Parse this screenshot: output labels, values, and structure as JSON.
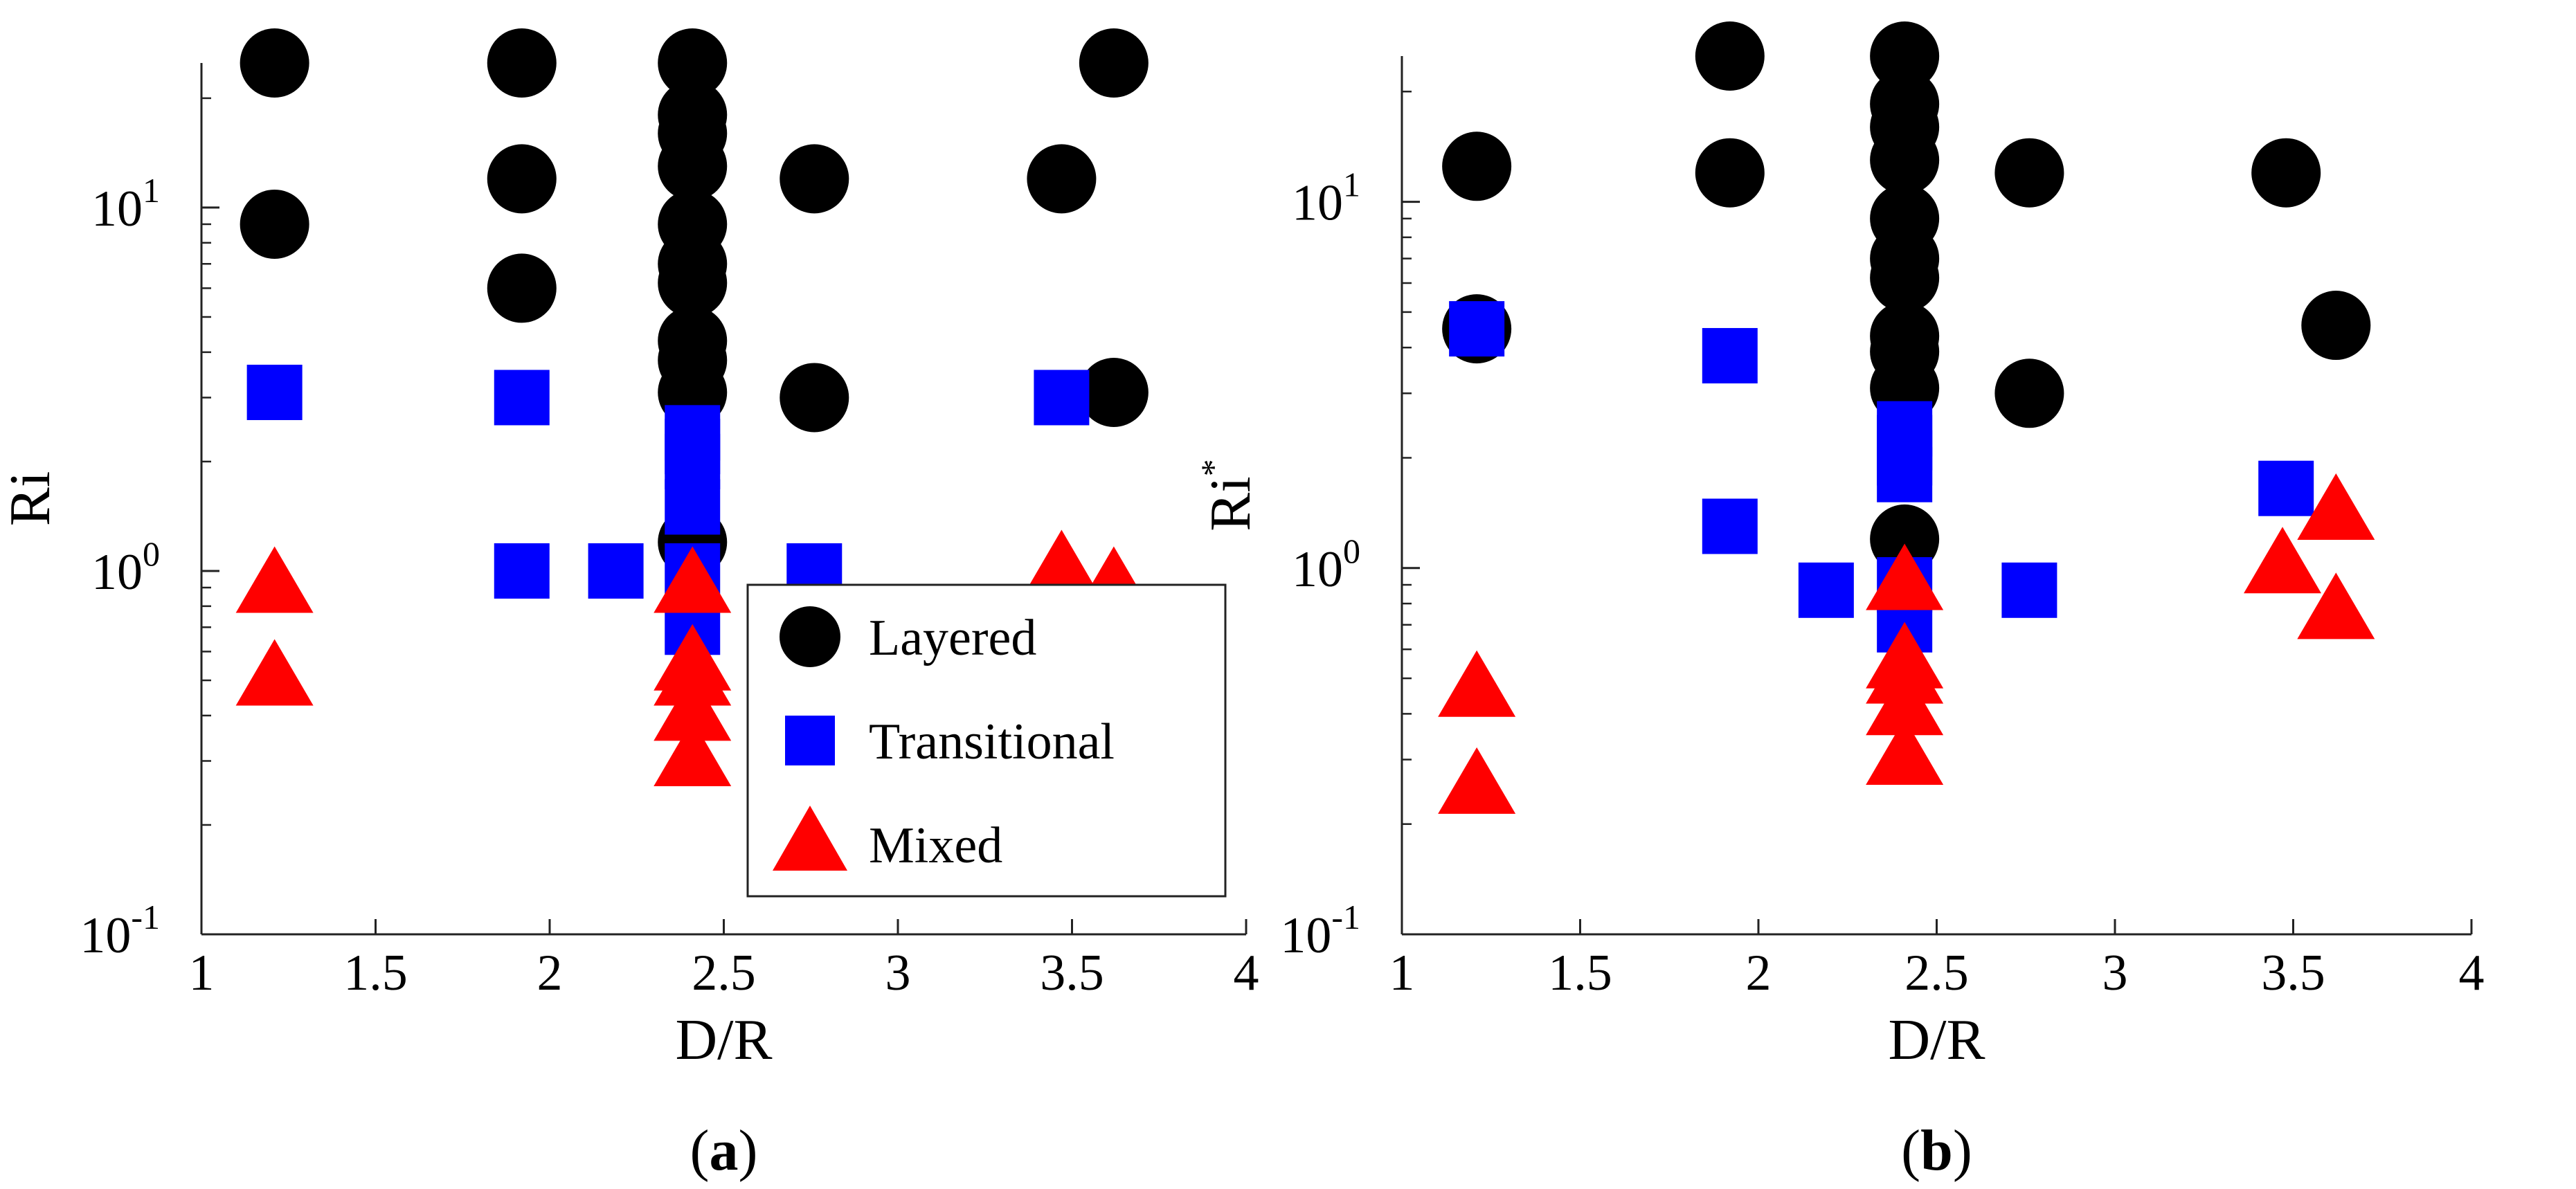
{
  "chart_data": [
    {
      "type": "scatter",
      "panel": "(a)",
      "panel_caption_letter": "a",
      "xlabel": "D/R",
      "ylabel": "Ri",
      "ylabel_sup": "",
      "xlim": [
        1,
        4
      ],
      "ylim": [
        0.1,
        25
      ],
      "yscale": "log",
      "x_ticks": [
        "1",
        "1.5",
        "2",
        "2.5",
        "3",
        "3.5",
        "4"
      ],
      "y_ticks": [
        {
          "base": "10",
          "exp": "-1",
          "value": 0.1
        },
        {
          "base": "10",
          "exp": "0",
          "value": 1
        },
        {
          "base": "10",
          "exp": "1",
          "value": 10
        }
      ],
      "grid": false,
      "legend": {
        "position": "bottom-right",
        "entries": [
          "Layered",
          "Transitional",
          "Mixed"
        ]
      },
      "series": [
        {
          "name": "Layered",
          "marker": "circle",
          "color": "#000000",
          "points": [
            {
              "x": 1.21,
              "y": 25
            },
            {
              "x": 1.21,
              "y": 9
            },
            {
              "x": 1.92,
              "y": 25
            },
            {
              "x": 1.92,
              "y": 12
            },
            {
              "x": 1.92,
              "y": 6
            },
            {
              "x": 2.41,
              "y": 25
            },
            {
              "x": 2.41,
              "y": 18
            },
            {
              "x": 2.41,
              "y": 16
            },
            {
              "x": 2.41,
              "y": 13
            },
            {
              "x": 2.41,
              "y": 9
            },
            {
              "x": 2.41,
              "y": 7
            },
            {
              "x": 2.41,
              "y": 6.2
            },
            {
              "x": 2.41,
              "y": 4.3
            },
            {
              "x": 2.41,
              "y": 3.8
            },
            {
              "x": 2.41,
              "y": 3.1
            },
            {
              "x": 2.41,
              "y": 1.2
            },
            {
              "x": 2.76,
              "y": 12
            },
            {
              "x": 2.76,
              "y": 3
            },
            {
              "x": 3.47,
              "y": 12
            },
            {
              "x": 3.62,
              "y": 25
            },
            {
              "x": 3.62,
              "y": 3.1
            }
          ]
        },
        {
          "name": "Transitional",
          "marker": "square",
          "color": "#0000ff",
          "points": [
            {
              "x": 1.21,
              "y": 3.1
            },
            {
              "x": 1.92,
              "y": 3
            },
            {
              "x": 1.92,
              "y": 1
            },
            {
              "x": 2.19,
              "y": 1
            },
            {
              "x": 2.41,
              "y": 2.4
            },
            {
              "x": 2.41,
              "y": 2.2
            },
            {
              "x": 2.41,
              "y": 2
            },
            {
              "x": 2.41,
              "y": 1.5
            },
            {
              "x": 2.41,
              "y": 1
            },
            {
              "x": 2.41,
              "y": 0.7
            },
            {
              "x": 2.76,
              "y": 1
            },
            {
              "x": 3.47,
              "y": 3
            }
          ]
        },
        {
          "name": "Mixed",
          "marker": "triangle",
          "color": "#ff0000",
          "points": [
            {
              "x": 1.21,
              "y": 0.9
            },
            {
              "x": 1.21,
              "y": 0.5
            },
            {
              "x": 2.41,
              "y": 0.9
            },
            {
              "x": 2.41,
              "y": 0.55
            },
            {
              "x": 2.41,
              "y": 0.5
            },
            {
              "x": 2.41,
              "y": 0.4
            },
            {
              "x": 2.41,
              "y": 0.3
            },
            {
              "x": 3.47,
              "y": 1
            },
            {
              "x": 3.62,
              "y": 0.9
            },
            {
              "x": 3.62,
              "y": 0.5
            }
          ]
        }
      ]
    },
    {
      "type": "scatter",
      "panel": "(b)",
      "panel_caption_letter": "b",
      "xlabel": "D/R",
      "ylabel": "Ri",
      "ylabel_sup": "*",
      "xlim": [
        1,
        4
      ],
      "ylim": [
        0.1,
        25
      ],
      "yscale": "log",
      "x_ticks": [
        "1",
        "1.5",
        "2",
        "2.5",
        "3",
        "3.5",
        "4"
      ],
      "y_ticks": [
        {
          "base": "10",
          "exp": "-1",
          "value": 0.1
        },
        {
          "base": "10",
          "exp": "0",
          "value": 1
        },
        {
          "base": "10",
          "exp": "1",
          "value": 10
        }
      ],
      "grid": false,
      "series": [
        {
          "name": "Layered",
          "marker": "circle",
          "color": "#000000",
          "points": [
            {
              "x": 1.21,
              "y": 12.5
            },
            {
              "x": 1.21,
              "y": 4.5
            },
            {
              "x": 1.92,
              "y": 25
            },
            {
              "x": 1.92,
              "y": 12
            },
            {
              "x": 2.41,
              "y": 25
            },
            {
              "x": 2.41,
              "y": 18.5
            },
            {
              "x": 2.41,
              "y": 16
            },
            {
              "x": 2.41,
              "y": 13
            },
            {
              "x": 2.41,
              "y": 9
            },
            {
              "x": 2.41,
              "y": 7
            },
            {
              "x": 2.41,
              "y": 6.2
            },
            {
              "x": 2.41,
              "y": 4.3
            },
            {
              "x": 2.41,
              "y": 3.9
            },
            {
              "x": 2.41,
              "y": 3.1
            },
            {
              "x": 2.41,
              "y": 1.2
            },
            {
              "x": 2.76,
              "y": 12
            },
            {
              "x": 2.76,
              "y": 3
            },
            {
              "x": 3.48,
              "y": 12
            },
            {
              "x": 3.62,
              "y": 4.6
            }
          ]
        },
        {
          "name": "Transitional",
          "marker": "square",
          "color": "#0000ff",
          "points": [
            {
              "x": 1.21,
              "y": 4.5
            },
            {
              "x": 1.92,
              "y": 3.8
            },
            {
              "x": 1.92,
              "y": 1.3
            },
            {
              "x": 2.19,
              "y": 0.87
            },
            {
              "x": 2.41,
              "y": 2.4
            },
            {
              "x": 2.41,
              "y": 2.2
            },
            {
              "x": 2.41,
              "y": 2
            },
            {
              "x": 2.41,
              "y": 1.8
            },
            {
              "x": 2.41,
              "y": 0.9
            },
            {
              "x": 2.41,
              "y": 0.7
            },
            {
              "x": 2.76,
              "y": 0.87
            },
            {
              "x": 3.48,
              "y": 1.65
            }
          ]
        },
        {
          "name": "Mixed",
          "marker": "triangle",
          "color": "#ff0000",
          "points": [
            {
              "x": 1.21,
              "y": 0.46
            },
            {
              "x": 1.21,
              "y": 0.25
            },
            {
              "x": 2.41,
              "y": 0.9
            },
            {
              "x": 2.41,
              "y": 0.55
            },
            {
              "x": 2.41,
              "y": 0.5
            },
            {
              "x": 2.41,
              "y": 0.41
            },
            {
              "x": 2.41,
              "y": 0.3
            },
            {
              "x": 3.47,
              "y": 1
            },
            {
              "x": 3.62,
              "y": 1.4
            },
            {
              "x": 3.62,
              "y": 0.75
            }
          ]
        }
      ]
    }
  ]
}
